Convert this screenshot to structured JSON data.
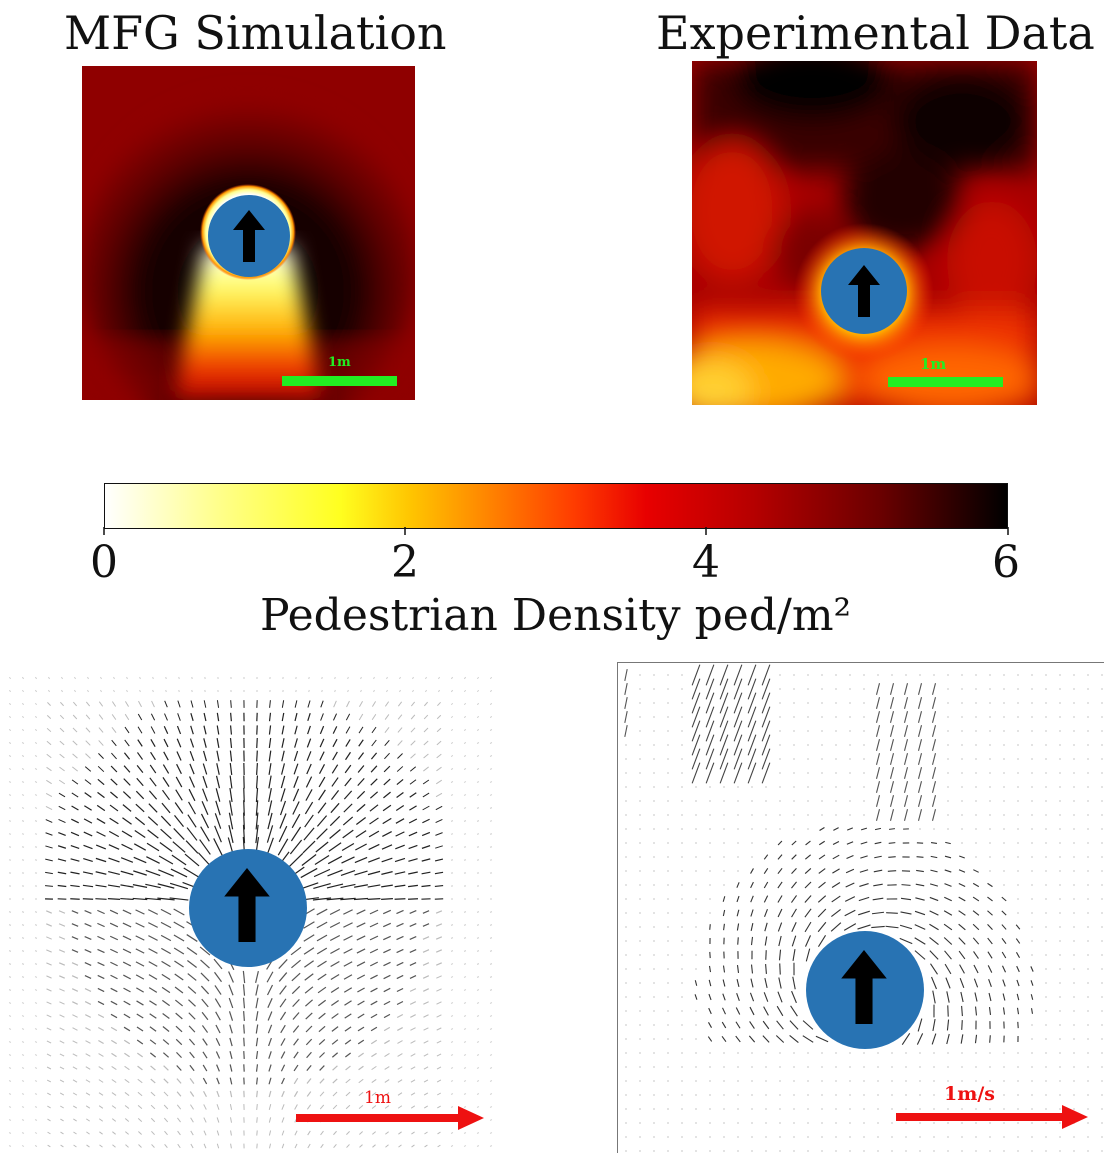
{
  "titles": {
    "left": "MFG Simulation",
    "right": "Experimental Data"
  },
  "colors": {
    "scale_bar": "#22ee22",
    "velocity_arrow": "#ee1111",
    "agent_disk": "#2873b3",
    "agent_arrow": "#000000"
  },
  "density_panels": {
    "left": {
      "scale_label": "1m"
    },
    "right": {
      "scale_label": "1m"
    }
  },
  "colorbar": {
    "colormap": "hot (reversed)",
    "ticks": [
      "0",
      "2",
      "4",
      "6"
    ],
    "range": [
      0,
      6
    ],
    "label": "Pedestrian Density ped/m²"
  },
  "velocity_panels": {
    "left": {
      "scale_label": "1m"
    },
    "right": {
      "scale_label": "1m/s"
    }
  },
  "icons": {
    "agent": "up-arrow-icon"
  }
}
